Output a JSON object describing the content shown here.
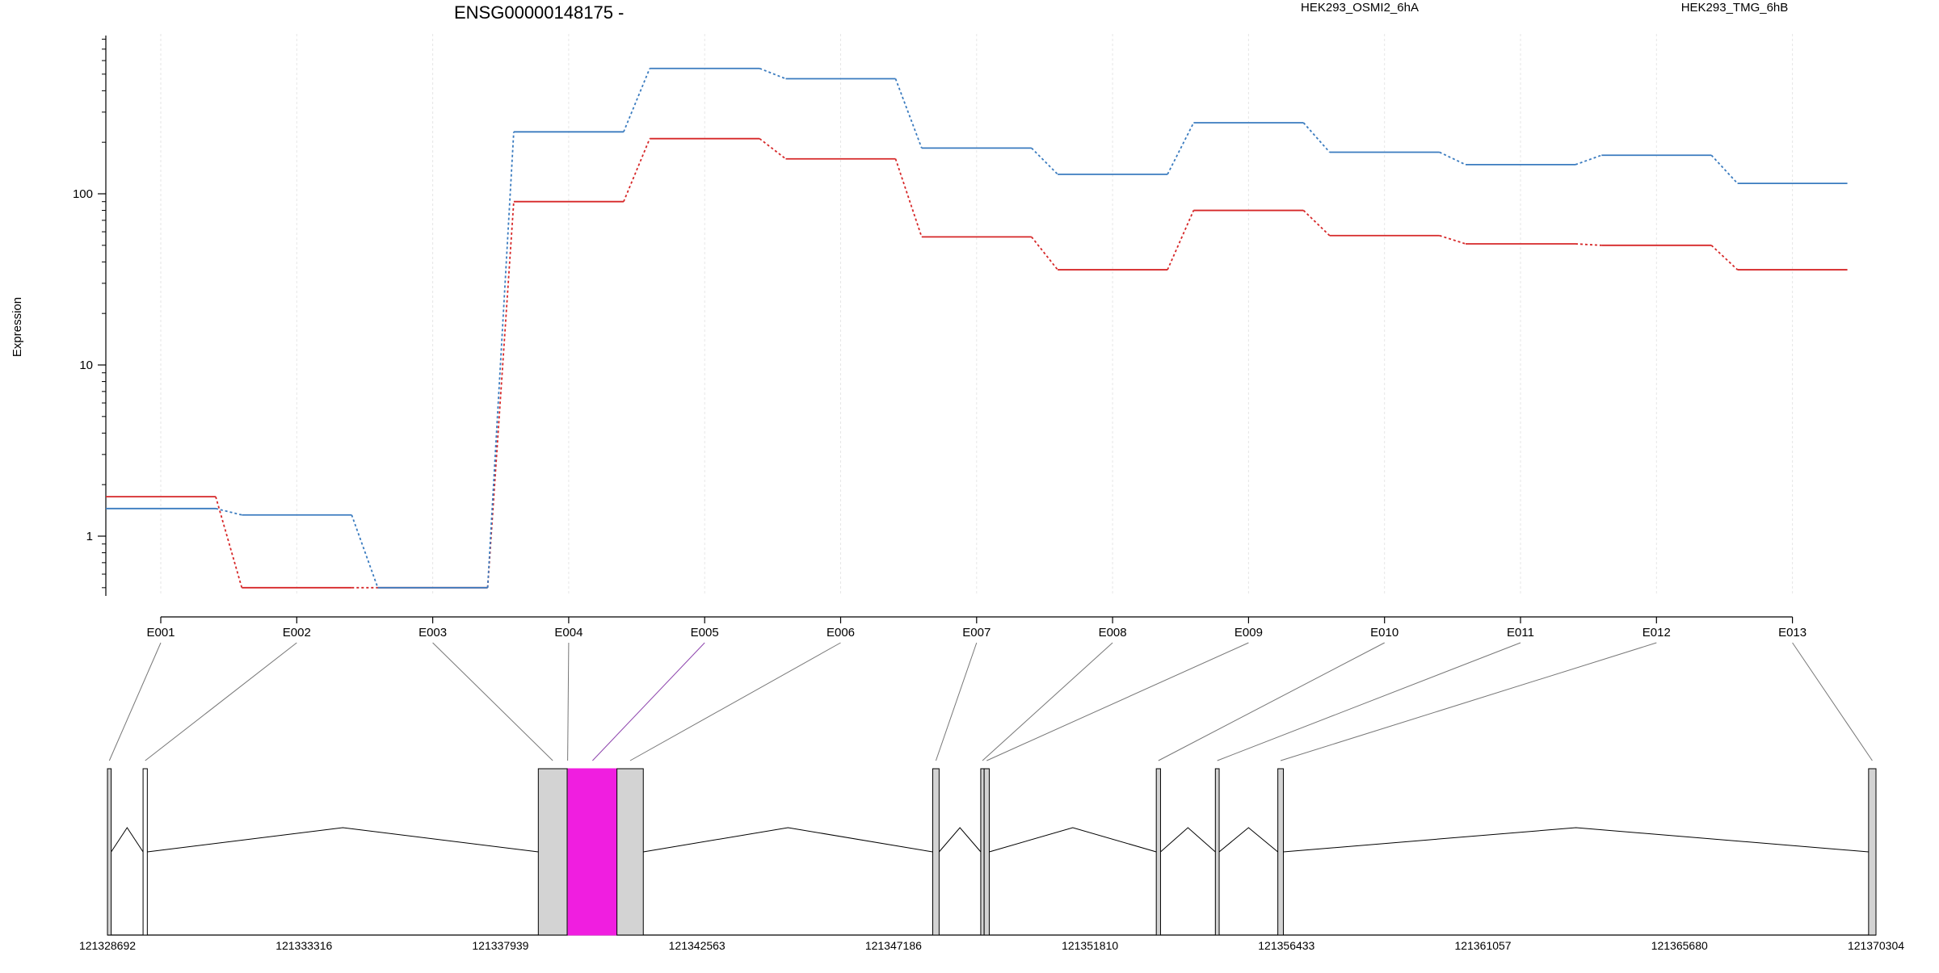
{
  "chart_data": {
    "type": "line",
    "title": "ENSG00000148175 -",
    "ylabel": "Expression",
    "xlabel": "",
    "y_scale": "log",
    "y_ticks": [
      1,
      10,
      100
    ],
    "y_tick_labels": [
      "1",
      "10",
      "100"
    ],
    "grid": true,
    "legend_position": "top-right",
    "categories": [
      "E001",
      "E002",
      "E003",
      "E004",
      "E005",
      "E006",
      "E007",
      "E008",
      "E009",
      "E010",
      "E011",
      "E012",
      "E013"
    ],
    "series": [
      {
        "name": "HEK293_OSMI2_6hA",
        "color": "#d62728",
        "values": [
          1.7,
          0.5,
          0.5,
          90,
          210,
          160,
          56,
          36,
          80,
          57,
          51,
          50,
          36
        ]
      },
      {
        "name": "HEK293_TMG_6hB",
        "color": "#3a7bbf",
        "values": [
          1.45,
          1.33,
          0.5,
          230,
          540,
          470,
          185,
          130,
          260,
          175,
          148,
          168,
          115
        ]
      }
    ],
    "genomic_axis": {
      "tick_labels": [
        "121328692",
        "121333316",
        "121337939",
        "121342563",
        "121347186",
        "121351810",
        "121356433",
        "121361057",
        "121365680",
        "121370304"
      ]
    },
    "exons": [
      {
        "id": "E001",
        "start": 121328692,
        "end": 121328780,
        "fill": "#d3d3d3"
      },
      {
        "id": "E002",
        "start": 121329530,
        "end": 121329630,
        "fill": "#ffffff"
      },
      {
        "id": "E003",
        "start": 121338830,
        "end": 121339510,
        "fill": "#d3d3d3"
      },
      {
        "id": "E004",
        "start": 121339510,
        "end": 121339530,
        "fill": "#d3d3d3"
      },
      {
        "id": "E005",
        "start": 121339530,
        "end": 121340680,
        "fill": "#f01ee0"
      },
      {
        "id": "E006",
        "start": 121340680,
        "end": 121341300,
        "fill": "#d3d3d3"
      },
      {
        "id": "E007",
        "start": 121348110,
        "end": 121348260,
        "fill": "#d3d3d3"
      },
      {
        "id": "E008",
        "start": 121349240,
        "end": 121349320,
        "fill": "#d3d3d3"
      },
      {
        "id": "E009",
        "start": 121349320,
        "end": 121349440,
        "fill": "#d3d3d3"
      },
      {
        "id": "E010",
        "start": 121353370,
        "end": 121353470,
        "fill": "#d3d3d3"
      },
      {
        "id": "E011",
        "start": 121354760,
        "end": 121354850,
        "fill": "#d3d3d3"
      },
      {
        "id": "E012",
        "start": 121356230,
        "end": 121356360,
        "fill": "#d3d3d3"
      },
      {
        "id": "E013",
        "start": 121370130,
        "end": 121370304,
        "fill": "#d3d3d3"
      }
    ],
    "highlight_color": "#f01ee0"
  }
}
